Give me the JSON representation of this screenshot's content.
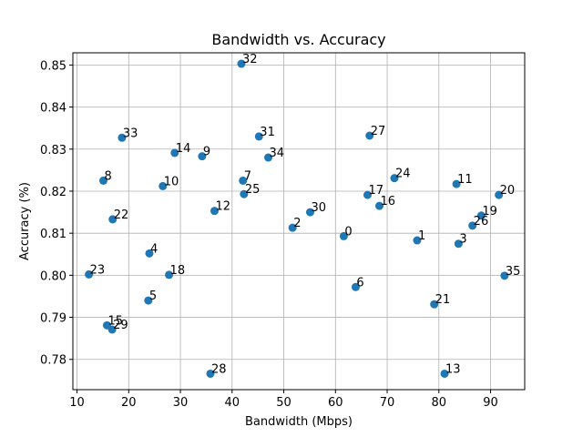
{
  "chart_data": {
    "type": "scatter",
    "title": "Bandwidth vs. Accuracy",
    "xlabel": "Bandwidth (Mbps)",
    "ylabel": "Accuracy (%)",
    "xlim": [
      9.2,
      96.6
    ],
    "ylim": [
      0.7728,
      0.8529
    ],
    "xticks": [
      10,
      20,
      30,
      40,
      50,
      60,
      70,
      80,
      90
    ],
    "yticks": [
      0.78,
      0.79,
      0.8,
      0.81,
      0.82,
      0.83,
      0.84,
      0.85
    ],
    "ytick_labels": [
      "0.78",
      "0.79",
      "0.80",
      "0.81",
      "0.82",
      "0.83",
      "0.84",
      "0.85"
    ],
    "grid": true,
    "marker_color": "#1f77b4",
    "points": [
      {
        "label": "0",
        "x": 61.6,
        "y": 0.8093
      },
      {
        "label": "1",
        "x": 75.8,
        "y": 0.8083
      },
      {
        "label": "2",
        "x": 51.7,
        "y": 0.8113
      },
      {
        "label": "3",
        "x": 83.8,
        "y": 0.8075
      },
      {
        "label": "4",
        "x": 24.0,
        "y": 0.8052
      },
      {
        "label": "5",
        "x": 23.8,
        "y": 0.794
      },
      {
        "label": "6",
        "x": 63.9,
        "y": 0.7972
      },
      {
        "label": "7",
        "x": 42.1,
        "y": 0.8225
      },
      {
        "label": "8",
        "x": 15.1,
        "y": 0.8225
      },
      {
        "label": "9",
        "x": 34.2,
        "y": 0.8283
      },
      {
        "label": "10",
        "x": 26.6,
        "y": 0.8212
      },
      {
        "label": "11",
        "x": 83.4,
        "y": 0.8217
      },
      {
        "label": "12",
        "x": 36.6,
        "y": 0.8153
      },
      {
        "label": "13",
        "x": 81.1,
        "y": 0.7766
      },
      {
        "label": "14",
        "x": 28.9,
        "y": 0.8291
      },
      {
        "label": "15",
        "x": 15.8,
        "y": 0.7881
      },
      {
        "label": "16",
        "x": 68.5,
        "y": 0.8165
      },
      {
        "label": "17",
        "x": 66.2,
        "y": 0.8191
      },
      {
        "label": "18",
        "x": 27.8,
        "y": 0.8001
      },
      {
        "label": "19",
        "x": 88.2,
        "y": 0.8142
      },
      {
        "label": "20",
        "x": 91.6,
        "y": 0.8191
      },
      {
        "label": "21",
        "x": 79.1,
        "y": 0.7931
      },
      {
        "label": "22",
        "x": 16.9,
        "y": 0.8133
      },
      {
        "label": "23",
        "x": 12.3,
        "y": 0.8002
      },
      {
        "label": "24",
        "x": 71.4,
        "y": 0.8231
      },
      {
        "label": "25",
        "x": 42.3,
        "y": 0.8193
      },
      {
        "label": "26",
        "x": 86.5,
        "y": 0.8118
      },
      {
        "label": "27",
        "x": 66.6,
        "y": 0.8332
      },
      {
        "label": "28",
        "x": 35.8,
        "y": 0.7766
      },
      {
        "label": "29",
        "x": 16.8,
        "y": 0.7871
      },
      {
        "label": "30",
        "x": 55.1,
        "y": 0.815
      },
      {
        "label": "31",
        "x": 45.2,
        "y": 0.833
      },
      {
        "label": "32",
        "x": 41.8,
        "y": 0.8503
      },
      {
        "label": "33",
        "x": 18.7,
        "y": 0.8327
      },
      {
        "label": "34",
        "x": 47.0,
        "y": 0.828
      },
      {
        "label": "35",
        "x": 92.7,
        "y": 0.7999
      }
    ]
  }
}
